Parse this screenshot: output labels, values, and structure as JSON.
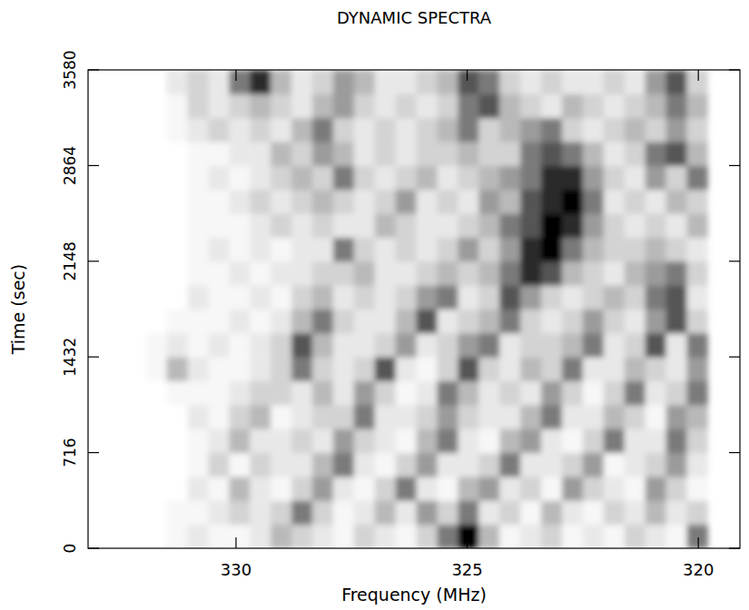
{
  "chart_data": {
    "type": "heatmap",
    "title": "DYNAMIC SPECTRA",
    "x_label": "Frequency (MHz)",
    "y_label": "Time (sec)",
    "xlim": [
      333.2,
      319.1
    ],
    "xticks": [
      330,
      325,
      320
    ],
    "ylim": [
      0,
      3580
    ],
    "yticks": [
      0,
      716,
      1432,
      2148,
      2864,
      3580
    ],
    "freq_edges": [
      332.4,
      331.95,
      331.5,
      331.05,
      330.6,
      330.15,
      329.7,
      329.25,
      328.8,
      328.35,
      327.9,
      327.45,
      327.0,
      326.55,
      326.1,
      325.65,
      325.2,
      324.75,
      324.3,
      323.85,
      323.4,
      322.95,
      322.5,
      322.05,
      321.6,
      321.15,
      320.7,
      320.25,
      319.8
    ],
    "time_edges": [
      0,
      179,
      358,
      537,
      716,
      895,
      1074,
      1253,
      1432,
      1611,
      1790,
      1969,
      2148,
      2327,
      2506,
      2685,
      2864,
      3043,
      3222,
      3401,
      3580
    ],
    "cells": [
      [
        0,
        0,
        1,
        2,
        1,
        1,
        2,
        4,
        3,
        2,
        1,
        3,
        2,
        1,
        3,
        6,
        9,
        4,
        1,
        2,
        3,
        1,
        2,
        1,
        3,
        2,
        1,
        6
      ],
      [
        0,
        0,
        1,
        1,
        2,
        3,
        2,
        3,
        6,
        3,
        1,
        2,
        4,
        2,
        5,
        3,
        6,
        2,
        3,
        1,
        4,
        2,
        1,
        3,
        2,
        4,
        2,
        3
      ],
      [
        0,
        0,
        0,
        2,
        1,
        4,
        2,
        1,
        3,
        5,
        2,
        1,
        3,
        6,
        2,
        1,
        4,
        5,
        2,
        3,
        1,
        5,
        3,
        2,
        1,
        5,
        3,
        1
      ],
      [
        0,
        0,
        0,
        1,
        3,
        1,
        3,
        2,
        2,
        4,
        6,
        2,
        1,
        3,
        5,
        2,
        2,
        3,
        6,
        2,
        2,
        3,
        5,
        1,
        2,
        3,
        5,
        2
      ],
      [
        0,
        0,
        0,
        1,
        2,
        4,
        2,
        2,
        3,
        2,
        5,
        3,
        2,
        1,
        4,
        6,
        2,
        1,
        4,
        5,
        2,
        1,
        3,
        6,
        2,
        2,
        6,
        3
      ],
      [
        0,
        0,
        0,
        2,
        1,
        3,
        4,
        1,
        2,
        3,
        3,
        6,
        2,
        2,
        3,
        5,
        3,
        2,
        2,
        4,
        6,
        2,
        2,
        4,
        3,
        1,
        5,
        4
      ],
      [
        0,
        0,
        1,
        1,
        1,
        2,
        3,
        3,
        2,
        4,
        2,
        5,
        3,
        1,
        2,
        6,
        4,
        2,
        3,
        2,
        5,
        3,
        1,
        3,
        6,
        2,
        3,
        6
      ],
      [
        0,
        1,
        4,
        2,
        1,
        1,
        2,
        3,
        6,
        3,
        2,
        3,
        7,
        2,
        1,
        3,
        7,
        3,
        2,
        4,
        3,
        6,
        2,
        2,
        4,
        3,
        2,
        5
      ],
      [
        0,
        1,
        2,
        1,
        2,
        1,
        2,
        3,
        7,
        4,
        2,
        2,
        3,
        5,
        2,
        3,
        5,
        6,
        2,
        3,
        3,
        4,
        6,
        2,
        3,
        7,
        2,
        6
      ],
      [
        0,
        0,
        1,
        1,
        1,
        2,
        1,
        2,
        4,
        6,
        3,
        2,
        2,
        4,
        7,
        2,
        3,
        4,
        6,
        3,
        2,
        3,
        5,
        3,
        2,
        5,
        7,
        3
      ],
      [
        0,
        0,
        0,
        2,
        1,
        1,
        2,
        1,
        3,
        4,
        2,
        3,
        2,
        3,
        5,
        6,
        2,
        3,
        7,
        5,
        3,
        2,
        3,
        4,
        3,
        6,
        7,
        2
      ],
      [
        0,
        0,
        0,
        1,
        1,
        2,
        1,
        2,
        2,
        3,
        3,
        4,
        2,
        2,
        3,
        4,
        3,
        4,
        6,
        8,
        7,
        4,
        3,
        2,
        4,
        5,
        6,
        3
      ],
      [
        0,
        0,
        0,
        1,
        2,
        1,
        2,
        1,
        2,
        2,
        6,
        3,
        2,
        3,
        2,
        3,
        5,
        3,
        5,
        8,
        9,
        6,
        4,
        3,
        3,
        4,
        3,
        2
      ],
      [
        0,
        0,
        0,
        1,
        1,
        1,
        2,
        3,
        2,
        3,
        2,
        2,
        4,
        3,
        2,
        2,
        3,
        4,
        6,
        7,
        9,
        8,
        5,
        3,
        2,
        3,
        2,
        4
      ],
      [
        0,
        0,
        0,
        1,
        1,
        2,
        3,
        2,
        3,
        4,
        3,
        2,
        3,
        5,
        2,
        3,
        2,
        5,
        4,
        7,
        8,
        9,
        6,
        2,
        3,
        2,
        4,
        3
      ],
      [
        0,
        0,
        0,
        1,
        2,
        1,
        2,
        3,
        4,
        3,
        6,
        3,
        2,
        3,
        4,
        2,
        3,
        4,
        5,
        6,
        8,
        8,
        5,
        3,
        2,
        5,
        3,
        6
      ],
      [
        0,
        0,
        0,
        1,
        1,
        2,
        2,
        4,
        3,
        5,
        4,
        2,
        3,
        2,
        3,
        3,
        4,
        3,
        3,
        6,
        7,
        6,
        4,
        2,
        3,
        6,
        7,
        4
      ],
      [
        0,
        0,
        1,
        2,
        3,
        2,
        3,
        2,
        4,
        6,
        3,
        2,
        3,
        2,
        3,
        4,
        6,
        3,
        4,
        5,
        6,
        3,
        2,
        3,
        4,
        3,
        5,
        3
      ],
      [
        0,
        0,
        1,
        3,
        2,
        3,
        4,
        3,
        2,
        4,
        5,
        3,
        2,
        3,
        2,
        3,
        6,
        7,
        4,
        3,
        2,
        4,
        3,
        2,
        3,
        4,
        6,
        4
      ],
      [
        0,
        0,
        2,
        3,
        2,
        6,
        8,
        4,
        2,
        3,
        5,
        4,
        2,
        2,
        3,
        4,
        7,
        6,
        3,
        2,
        3,
        2,
        2,
        3,
        2,
        5,
        7,
        3
      ]
    ]
  }
}
